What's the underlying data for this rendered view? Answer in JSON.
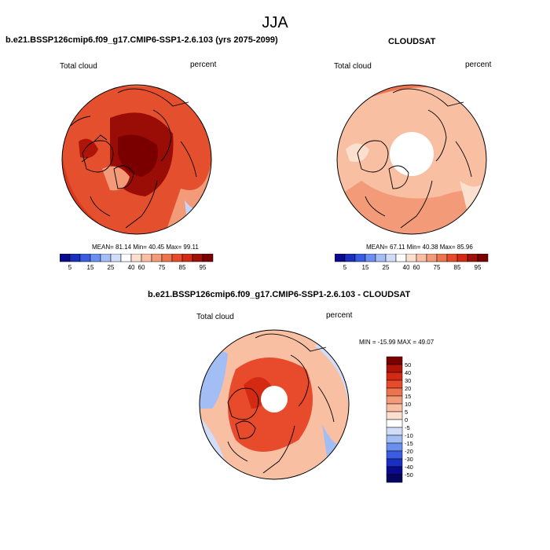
{
  "season": "JJA",
  "panels": {
    "model": {
      "title": "b.e21.BSSP126cmip6.f09_g17.CMIP6-SSP1-2.6.103 (yrs 2075-2099)",
      "variable": "Total cloud",
      "units": "percent",
      "stats": {
        "mean": "81.14",
        "min": "40.45",
        "max": "99.11"
      }
    },
    "obs": {
      "title": "CLOUDSAT",
      "variable": "Total cloud",
      "units": "percent",
      "stats": {
        "mean": "67.11",
        "min": "40.38",
        "max": "85.96"
      }
    },
    "diff": {
      "title": "b.e21.BSSP126cmip6.f09_g17.CMIP6-SSP1-2.6.103 - CLOUDSAT",
      "variable": "Total cloud",
      "units": "percent",
      "stats": {
        "min": "-15.99",
        "max": "49.07"
      }
    }
  },
  "labels": {
    "mean": "MEAN=",
    "min": "Min=",
    "max": "Max=",
    "min_upper": "MIN =",
    "max_upper": "MAX ="
  },
  "colorbar_abs": {
    "ticks": [
      "5",
      "15",
      "25",
      "40",
      "60",
      "75",
      "85",
      "95"
    ],
    "colors": [
      "#0a0a8c",
      "#1a2fc0",
      "#3a5ce0",
      "#6b8ff0",
      "#a3bdf5",
      "#d0dcf8",
      "#ffffff",
      "#fbe0d0",
      "#f8bfa3",
      "#f39b78",
      "#ee7450",
      "#e84a2c",
      "#d42a14",
      "#a0100a",
      "#7a0000"
    ]
  },
  "colorbar_diff": {
    "ticks": [
      "50",
      "40",
      "30",
      "20",
      "15",
      "10",
      "5",
      "0",
      "-5",
      "-10",
      "-15",
      "-20",
      "-30",
      "-40",
      "-50"
    ],
    "colors": [
      "#7a0000",
      "#b01408",
      "#d42a14",
      "#e84a2c",
      "#ee7450",
      "#f39b78",
      "#f8bfa3",
      "#fbe0d0",
      "#ffffff",
      "#d0dcf8",
      "#a3bdf5",
      "#6b8ff0",
      "#3a5ce0",
      "#1a2fc0",
      "#0a0a8c",
      "#05055e"
    ]
  }
}
